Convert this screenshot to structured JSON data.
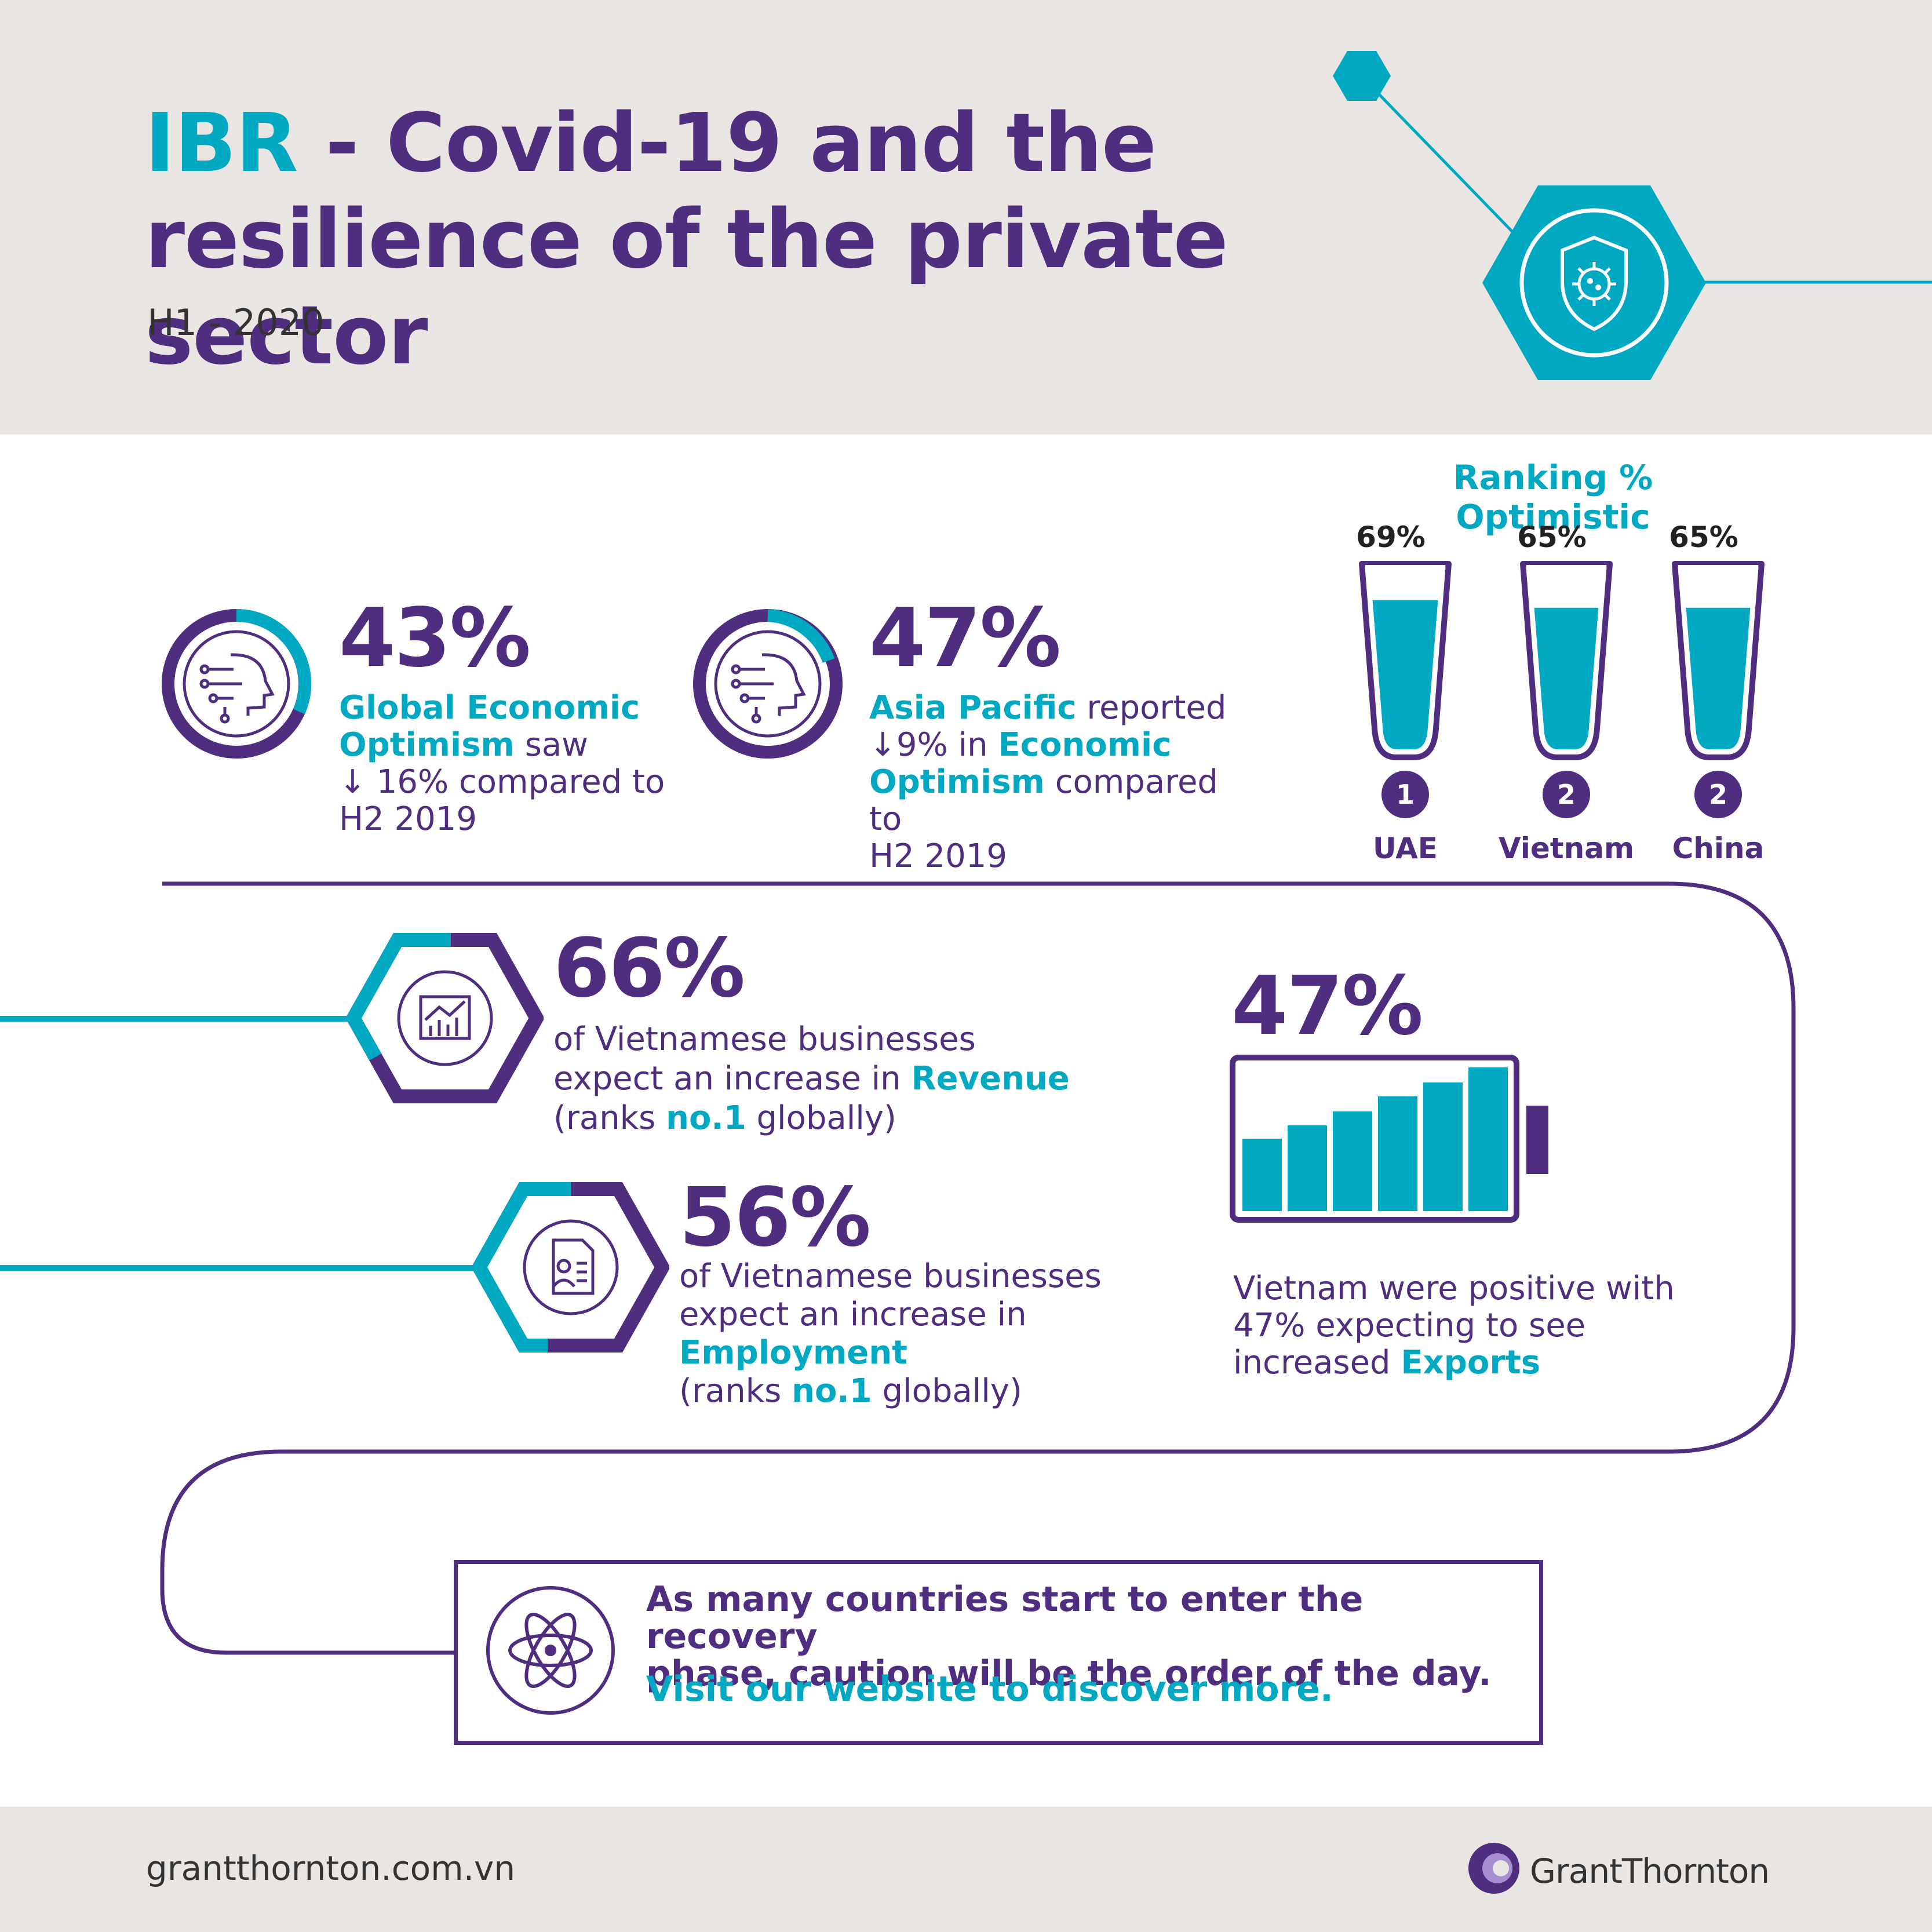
{
  "header": {
    "title_accent": "IBR",
    "title_rest_line1": " - Covid-19 and the",
    "title_line2": "resilience of the private sector",
    "subtitle": "H1 - 2020"
  },
  "stats": {
    "global": {
      "value": "43%",
      "l1a": "Global Economic",
      "l2a": "Optimism",
      "l2b": " saw",
      "l3": "↓ 16% compared to",
      "l4": "H2 2019"
    },
    "apac": {
      "value": "47%",
      "l1a": "Asia Pacific",
      "l1b": " reported",
      "l2a": "↓9% in ",
      "l2b": "Economic",
      "l3a": "Optimism",
      "l3b": " compared to",
      "l4": "H2 2019"
    },
    "revenue": {
      "value": "66%",
      "l1": "of Vietnamese businesses",
      "l2a": "expect an increase in ",
      "l2b": "Revenue",
      "l3a": "(ranks ",
      "l3b": "no.1",
      "l3c": " globally)"
    },
    "employment": {
      "value": "56%",
      "l1": "of Vietnamese businesses",
      "l2": "expect an increase in",
      "l3": "Employment",
      "l4a": "(ranks ",
      "l4b": "no.1",
      "l4c": " globally)"
    },
    "exports": {
      "value": "47%",
      "l1": "Vietnam were positive with",
      "l2": "47% expecting to see",
      "l3a": "increased ",
      "l3b": "Exports"
    }
  },
  "ranking": {
    "title": "Ranking % Optimistic",
    "items": [
      {
        "pct": "69%",
        "rank": "1",
        "country": "UAE",
        "fill": 0.69
      },
      {
        "pct": "65%",
        "rank": "2",
        "country": "Vietnam",
        "fill": 0.65
      },
      {
        "pct": "65%",
        "rank": "2",
        "country": "China",
        "fill": 0.65
      }
    ]
  },
  "callout": {
    "line1": "As many countries start to enter the recovery",
    "line2": "phase, caution will be the order of the day.",
    "link": "Visit our website to discover more."
  },
  "footer": {
    "url": "grantthornton.com.vn",
    "brand": "GrantThornton"
  },
  "colors": {
    "purple": "#4f2d7f",
    "teal": "#00a9c1",
    "background": "#e8e5e2"
  },
  "icons": [
    "shield-virus-icon",
    "ai-head-icon",
    "chart-icon",
    "document-person-icon",
    "atom-icon",
    "grant-thornton-logo-icon"
  ]
}
